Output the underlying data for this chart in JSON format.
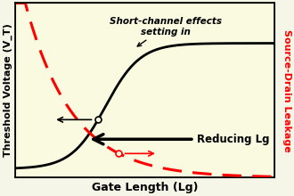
{
  "xlabel": "Gate Length (Lg)",
  "ylabel": "Threshold Voltage (V_T)",
  "ylabel_right": "Source-Drain Leakage",
  "background_color": "#f5f5e8",
  "plot_bg_color": "#fafae0",
  "annotation_short_channel": "Short-channel effects\nsetting in",
  "annotation_reducing": "Reducing Lg",
  "xlabel_fontsize": 9,
  "ylabel_fontsize": 8,
  "ylabel_right_fontsize": 8,
  "annot_fontsize": 7.5,
  "reducing_fontsize": 8.5
}
